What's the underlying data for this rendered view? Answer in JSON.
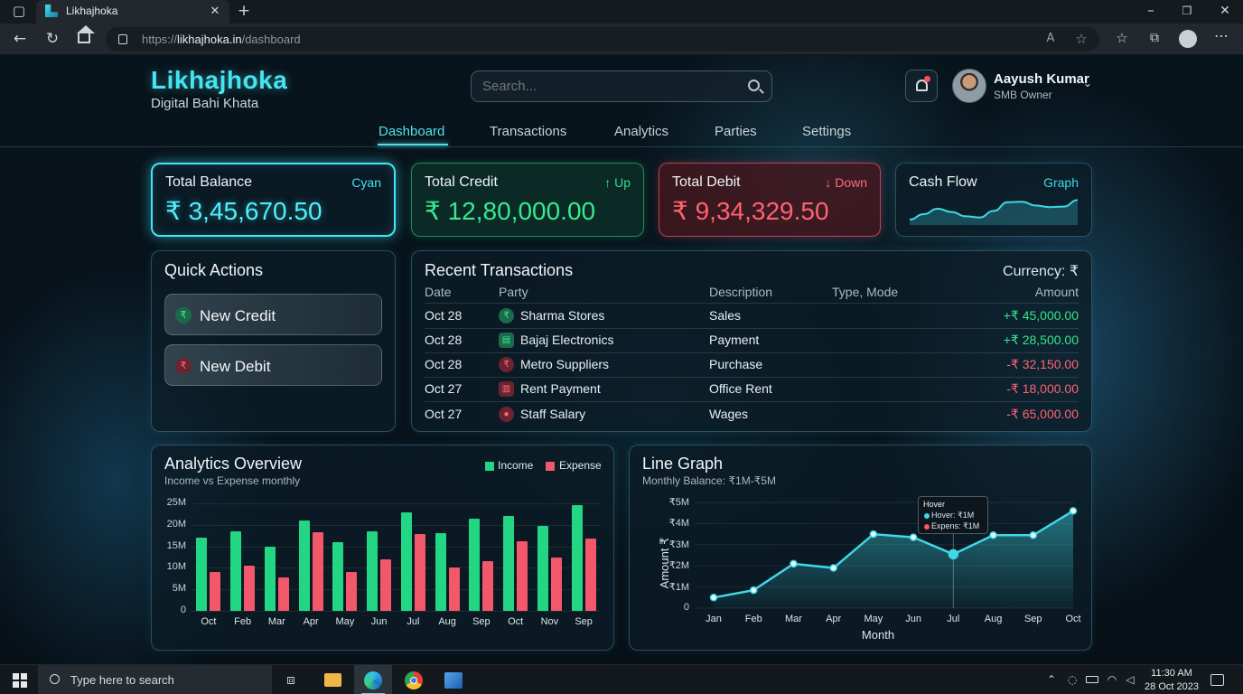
{
  "browser": {
    "tab_title": "Likhajhoka",
    "url_prefix": "https://",
    "url_domain": "likhajhoka.in",
    "url_path": "/dashboard"
  },
  "brand": {
    "name": "Likhajhoka",
    "tagline": "Digital Bahi Khata",
    "accent": "#3fe0ee"
  },
  "search": {
    "placeholder": "Search..."
  },
  "user": {
    "name": "Aayush Kumar",
    "role": "SMB Owner"
  },
  "nav": {
    "items": [
      "Dashboard",
      "Transactions",
      "Analytics",
      "Parties",
      "Settings"
    ],
    "active": "Dashboard"
  },
  "stats": [
    {
      "label": "Total Balance",
      "tag": "Cyan",
      "value": "₹ 3,45,670.50",
      "color": "#3fe6f5"
    },
    {
      "label": "Total Credit",
      "tag": "↑ Up",
      "value": "₹ 12,80,000.00",
      "color": "#2fe08a"
    },
    {
      "label": "Total Debit",
      "tag": "↓ Down",
      "value": "₹ 9,34,329.50",
      "color": "#ff5b6a"
    },
    {
      "label": "Cash Flow",
      "tag": "Graph",
      "color": "#3fd8e6"
    }
  ],
  "quick_actions": {
    "title": "Quick Actions",
    "items": [
      {
        "label": "New Credit",
        "icon": "rupee-icon"
      },
      {
        "label": "New Debit",
        "icon": "rupee-icon"
      }
    ]
  },
  "transactions": {
    "title": "Recent Transactions",
    "currency": "Currency: ₹",
    "columns": [
      "Date",
      "Party",
      "Description",
      "Type, Mode",
      "Amount"
    ],
    "rows": [
      {
        "date": "Oct 28",
        "party": "Sharma Stores",
        "icon": "rupee-icon",
        "description": "Sales",
        "amount": "+₹ 45,000.00",
        "kind": "credit"
      },
      {
        "date": "Oct 28",
        "party": "Bajaj Electronics",
        "icon": "receipt-icon",
        "description": "Payment",
        "amount": "+₹ 28,500.00",
        "kind": "credit"
      },
      {
        "date": "Oct 28",
        "party": "Metro Suppliers",
        "icon": "rupee-icon",
        "description": "Purchase",
        "amount": "-₹ 32,150.00",
        "kind": "debit"
      },
      {
        "date": "Oct 27",
        "party": "Rent Payment",
        "icon": "building-icon",
        "description": "Office Rent",
        "amount": "-₹ 18,000.00",
        "kind": "debit"
      },
      {
        "date": "Oct 27",
        "party": "Staff Salary",
        "icon": "person-icon",
        "description": "Wages",
        "amount": "-₹ 65,000.00",
        "kind": "debit"
      }
    ]
  },
  "analytics": {
    "title": "Analytics Overview",
    "subtitle": "Income vs Expense monthly"
  },
  "line_graph": {
    "title": "Line Graph",
    "subtitle": "Monthly Balance: ₹1M-₹5M",
    "tooltip": {
      "title": "Hover",
      "line1": "Hover: ₹1M",
      "line2": "Expens: ₹1M"
    }
  },
  "chart_data": [
    {
      "type": "bar",
      "categories": [
        "Oct",
        "Feb",
        "Mar",
        "Apr",
        "May",
        "Jun",
        "Jul",
        "Aug",
        "Sep",
        "Oct",
        "Nov",
        "Sep"
      ],
      "series": [
        {
          "name": "Income",
          "values": [
            17,
            18.5,
            15,
            21,
            16,
            18.5,
            23,
            18,
            21.5,
            22,
            19.8,
            24.5
          ],
          "color": "#22d683"
        },
        {
          "name": "Expense",
          "values": [
            9,
            10.5,
            7.8,
            18.3,
            9,
            12,
            17.8,
            10,
            11.5,
            16.2,
            12.3,
            16.8
          ],
          "color": "#f2586a"
        }
      ],
      "ylim": [
        0,
        25
      ],
      "yticks": [
        "0",
        "5M",
        "10M",
        "15M",
        "20M",
        "25M"
      ],
      "legend": "top-right",
      "grid": true
    },
    {
      "type": "area",
      "categories": [
        "Jan",
        "Feb",
        "Mar",
        "Apr",
        "May",
        "Jun",
        "Jul",
        "Aug",
        "Sep",
        "Oct"
      ],
      "series": [
        {
          "values": [
            0.5,
            0.85,
            2.1,
            1.9,
            3.5,
            3.35,
            2.55,
            3.45,
            3.45,
            4.6
          ],
          "color": "#3fd8e6"
        }
      ],
      "ylim": [
        0,
        5
      ],
      "yticks": [
        "0",
        "₹1M",
        "₹2M",
        "₹3M",
        "₹4M",
        "₹5M"
      ],
      "xlabel": "Month",
      "ylabel": "Amount ₹",
      "highlight_index": 6,
      "grid": true
    },
    {
      "type": "area",
      "series": [
        {
          "values": [
            1,
            2,
            3,
            2.4,
            1.6,
            1.4,
            2.6,
            4.2,
            4.3,
            3.6,
            3.3,
            3.4,
            4.6
          ]
        }
      ]
    }
  ],
  "taskbar": {
    "search_placeholder": "Type here to search",
    "time": "11:30 AM",
    "date": "28 Oct 2023"
  }
}
